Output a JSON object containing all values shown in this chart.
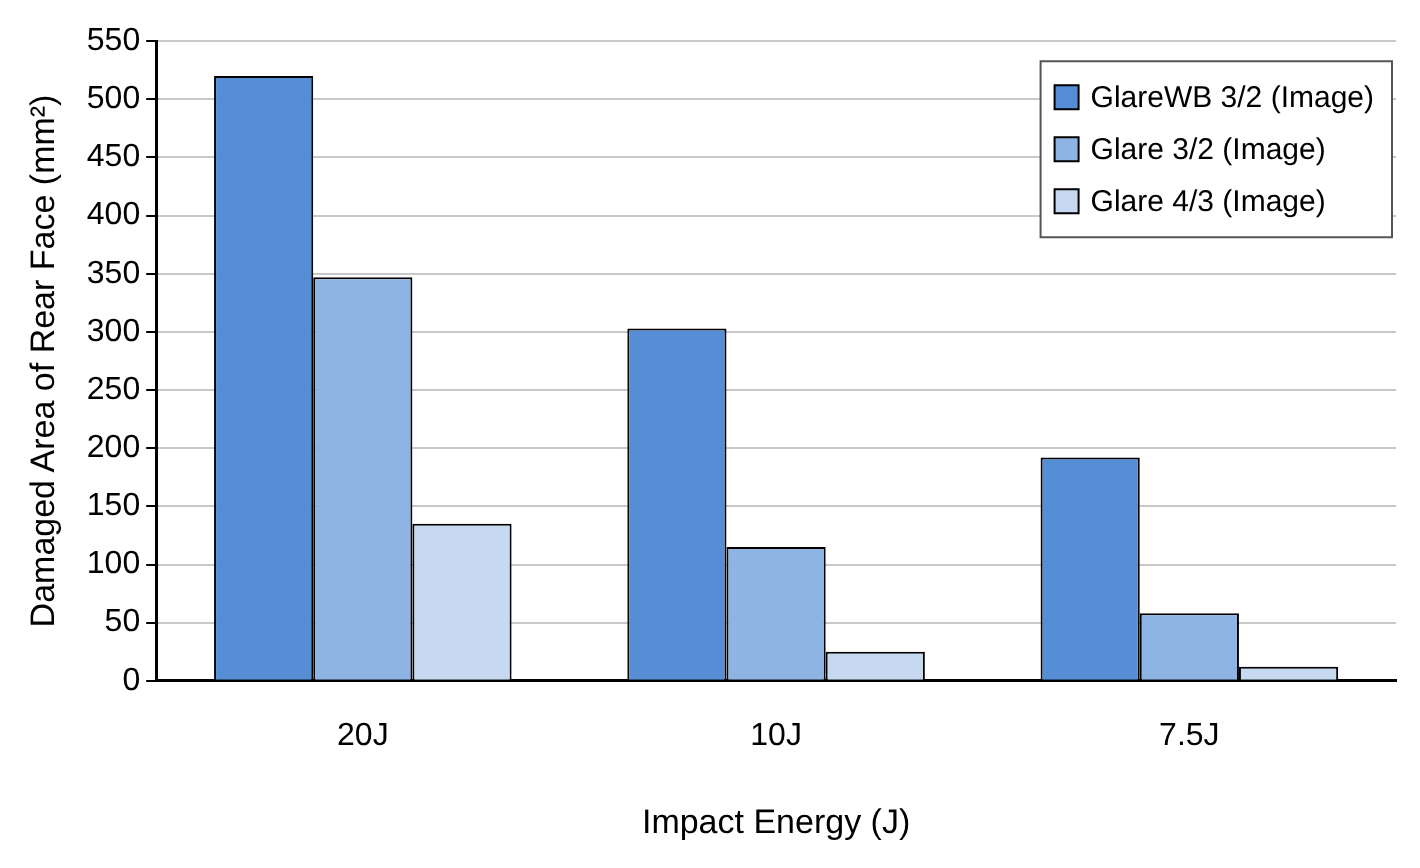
{
  "chart_data": {
    "type": "bar",
    "xlabel": "Impact Energy (J)",
    "ylabel": "Damaged Area of Rear Face (mm²)",
    "categories": [
      "20J",
      "10J",
      "7.5J"
    ],
    "series": [
      {
        "name": "GlareWB 3/2 (Image)",
        "color": "#558ed5",
        "values": [
          520,
          303,
          192
        ]
      },
      {
        "name": "Glare 3/2 (Image)",
        "color": "#8eb4e3",
        "values": [
          347,
          115,
          58
        ]
      },
      {
        "name": "Glare 4/3 (Image)",
        "color": "#c6d9f1",
        "values": [
          135,
          25,
          12
        ]
      }
    ],
    "ylim": [
      0,
      550
    ],
    "yticks": [
      0,
      50,
      100,
      150,
      200,
      250,
      300,
      350,
      400,
      450,
      500,
      550
    ],
    "grid": "y",
    "legend": "top right"
  }
}
